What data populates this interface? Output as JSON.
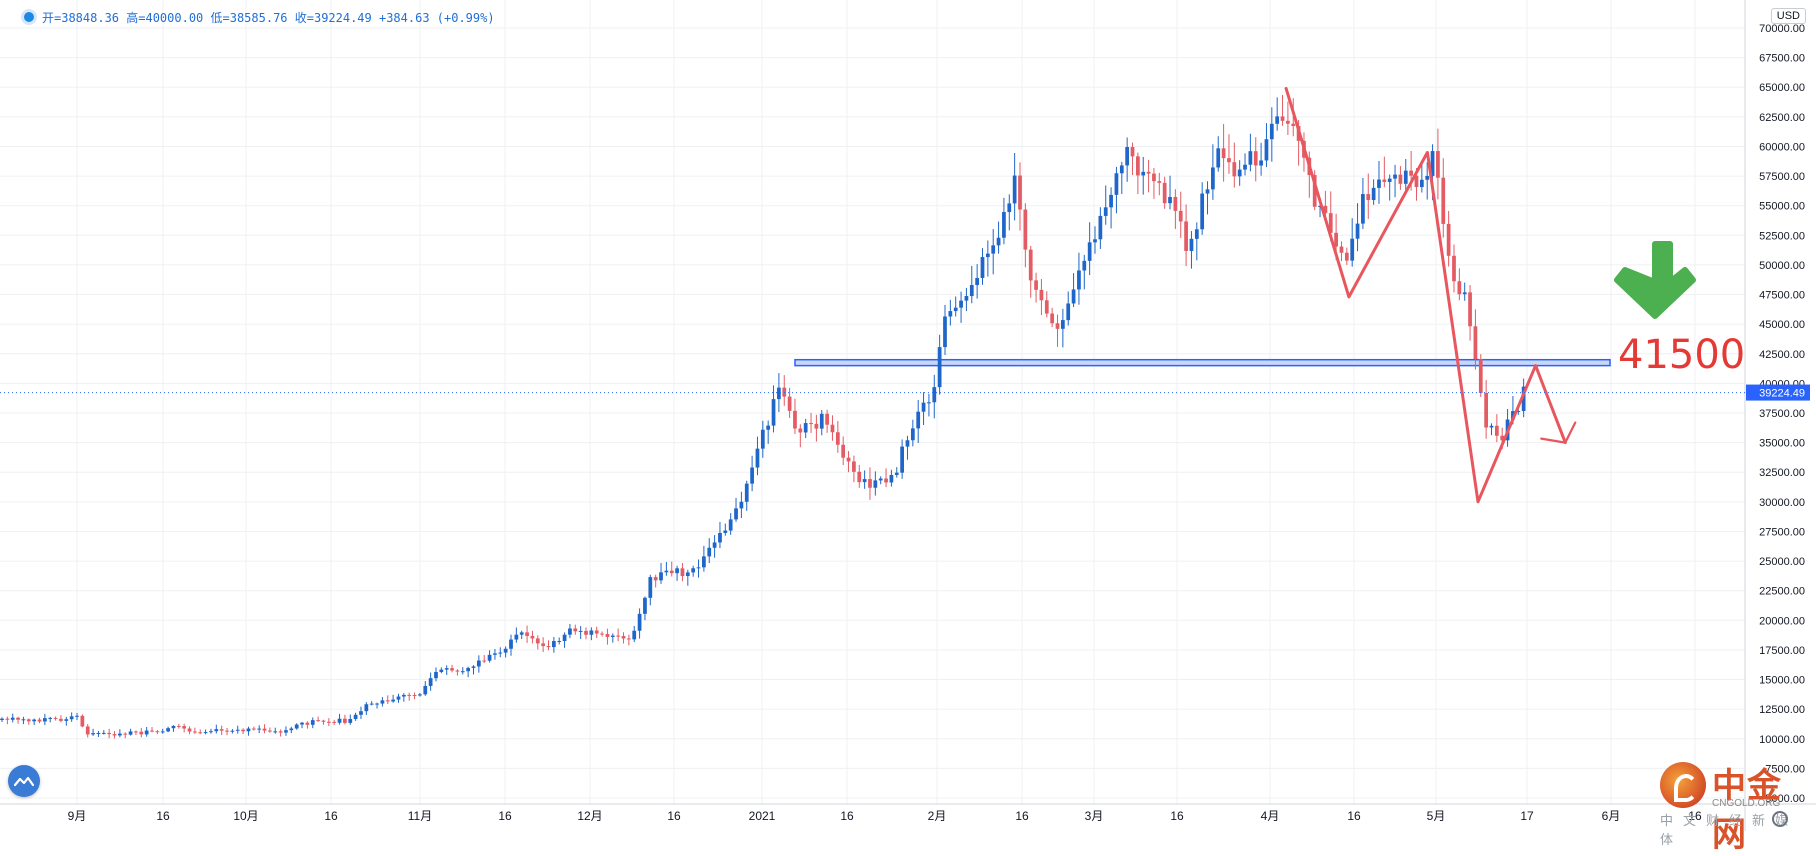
{
  "header": {
    "ohlc_text": "开=38848.36 高=40000.00 低=38585.76 收=39224.49 +384.63 (+0.99%)",
    "currency": "USD"
  },
  "watermark": {
    "brand": "中金网",
    "sub": "CNGOLD.ORG",
    "tag": "中文财经新媒体"
  },
  "annotation": {
    "level_label": "41500",
    "arrow_color": "#4caf50",
    "text_color": "#e53935"
  },
  "colors": {
    "up": "#1e66c9",
    "down": "#e35b63",
    "grid": "#eef0f4",
    "zone": "#2962ff",
    "price_line": "#2962ff",
    "pattern": "#e8565e"
  },
  "chart_data": {
    "type": "candlestick",
    "title": "",
    "xlabel": "",
    "ylabel": "",
    "currency": "USD",
    "last_price": 39224.49,
    "ylim": [
      5000,
      70000
    ],
    "y_ticks": [
      "70000.00",
      "67500.00",
      "65000.00",
      "62500.00",
      "60000.00",
      "57500.00",
      "55000.00",
      "52500.00",
      "50000.00",
      "47500.00",
      "45000.00",
      "42500.00",
      "40000.00",
      "37500.00",
      "35000.00",
      "32500.00",
      "30000.00",
      "27500.00",
      "25000.00",
      "22500.00",
      "20000.00",
      "17500.00",
      "15000.00",
      "12500.00",
      "10000.00",
      "7500.00",
      "5000.00"
    ],
    "x_ticks": [
      "9月",
      "16",
      "10月",
      "16",
      "11月",
      "16",
      "12月",
      "16",
      "2021",
      "16",
      "2月",
      "16",
      "3月",
      "16",
      "4月",
      "16",
      "5月",
      "17",
      "6月",
      "16"
    ],
    "resistance_zone": [
      41500,
      42000
    ],
    "annotation_level": 41500,
    "pattern_path": [
      {
        "t": 0.737,
        "p": 64900
      },
      {
        "t": 0.773,
        "p": 47300
      },
      {
        "t": 0.818,
        "p": 59500
      },
      {
        "t": 0.847,
        "p": 30000
      },
      {
        "t": 0.88,
        "p": 41500
      },
      {
        "t": 0.897,
        "p": 35000
      }
    ],
    "anchors": [
      [
        0.0,
        11800
      ],
      [
        0.035,
        11500
      ],
      [
        0.043,
        11900
      ],
      [
        0.05,
        10300
      ],
      [
        0.08,
        10500
      ],
      [
        0.1,
        11000
      ],
      [
        0.113,
        10400
      ],
      [
        0.13,
        10800
      ],
      [
        0.16,
        10700
      ],
      [
        0.18,
        11500
      ],
      [
        0.2,
        11500
      ],
      [
        0.21,
        13000
      ],
      [
        0.24,
        13900
      ],
      [
        0.25,
        15700
      ],
      [
        0.27,
        16000
      ],
      [
        0.29,
        18000
      ],
      [
        0.3,
        19000
      ],
      [
        0.313,
        17500
      ],
      [
        0.325,
        19300
      ],
      [
        0.34,
        19000
      ],
      [
        0.36,
        18300
      ],
      [
        0.372,
        23500
      ],
      [
        0.4,
        24500
      ],
      [
        0.42,
        29000
      ],
      [
        0.435,
        35000
      ],
      [
        0.445,
        40000
      ],
      [
        0.455,
        36000
      ],
      [
        0.47,
        37000
      ],
      [
        0.49,
        31500
      ],
      [
        0.51,
        32000
      ],
      [
        0.525,
        37500
      ],
      [
        0.535,
        40000
      ],
      [
        0.54,
        46300
      ],
      [
        0.555,
        48000
      ],
      [
        0.57,
        52000
      ],
      [
        0.58,
        57000
      ],
      [
        0.59,
        48000
      ],
      [
        0.605,
        45000
      ],
      [
        0.62,
        50000
      ],
      [
        0.635,
        56000
      ],
      [
        0.645,
        59500
      ],
      [
        0.655,
        57000
      ],
      [
        0.67,
        55500
      ],
      [
        0.68,
        51500
      ],
      [
        0.695,
        59000
      ],
      [
        0.71,
        58000
      ],
      [
        0.725,
        60000
      ],
      [
        0.735,
        63400
      ],
      [
        0.75,
        56500
      ],
      [
        0.77,
        49500
      ],
      [
        0.78,
        55500
      ],
      [
        0.795,
        58000
      ],
      [
        0.81,
        57000
      ],
      [
        0.82,
        59000
      ],
      [
        0.83,
        50000
      ],
      [
        0.84,
        46500
      ],
      [
        0.85,
        36500
      ],
      [
        0.86,
        35500
      ],
      [
        0.872,
        39224
      ]
    ]
  }
}
